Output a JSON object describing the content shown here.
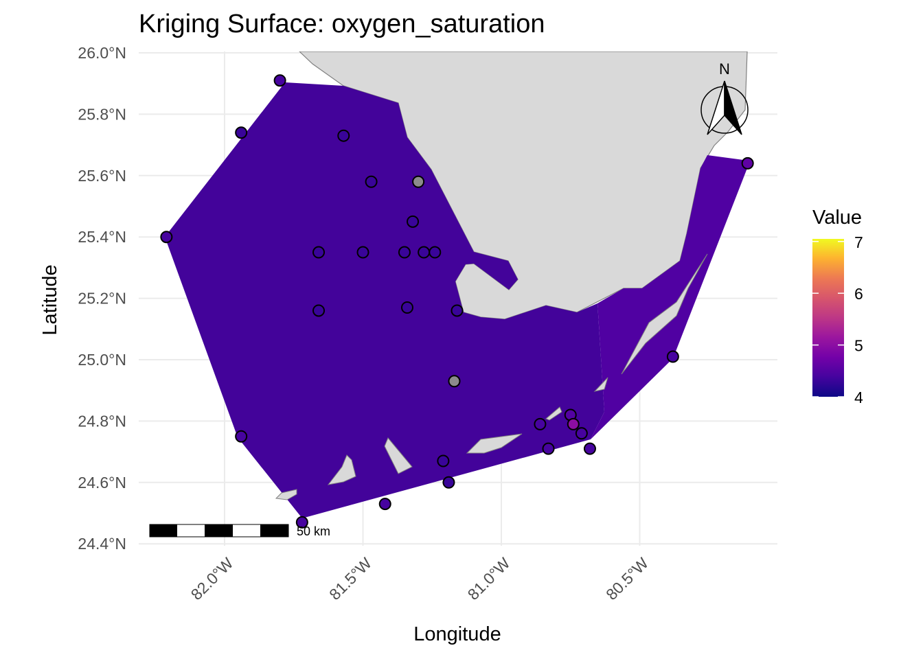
{
  "title": "Kriging Surface: oxygen_saturation",
  "chart_data": {
    "type": "map",
    "title": "Kriging Surface: oxygen_saturation",
    "xlabel": "Longitude",
    "ylabel": "Latitude",
    "x_ticks": [
      {
        "value": -82.0,
        "label": "82.0°W"
      },
      {
        "value": -81.5,
        "label": "81.5°W"
      },
      {
        "value": -81.0,
        "label": "81.0°W"
      },
      {
        "value": -80.5,
        "label": "80.5°W"
      }
    ],
    "y_ticks": [
      {
        "value": 26.0,
        "label": "26.0°N"
      },
      {
        "value": 25.8,
        "label": "25.8°N"
      },
      {
        "value": 25.6,
        "label": "25.6°N"
      },
      {
        "value": 25.4,
        "label": "25.4°N"
      },
      {
        "value": 25.2,
        "label": "25.2°N"
      },
      {
        "value": 25.0,
        "label": "25.0°N"
      },
      {
        "value": 24.8,
        "label": "24.8°N"
      },
      {
        "value": 24.6,
        "label": "24.6°N"
      },
      {
        "value": 24.4,
        "label": "24.4°N"
      }
    ],
    "xlim": [
      -82.3,
      -80.0
    ],
    "ylim": [
      24.4,
      26.0
    ],
    "grid": true,
    "colors": {
      "land": "#d9d9d9",
      "land_stroke": "#808080",
      "surface_main": "#430495",
      "surface_east": "#5301a3",
      "grid": "#ebebeb",
      "na_point": "#8c8c8c"
    },
    "surface_hull": [
      [
        -82.21,
        25.4
      ],
      [
        -81.8,
        25.9
      ],
      [
        -80.11,
        25.64
      ],
      [
        -80.38,
        25.01
      ],
      [
        -80.68,
        24.71
      ],
      [
        -81.69,
        24.48
      ]
    ],
    "samples": [
      {
        "lon": -81.8,
        "lat": 25.91,
        "value": 4.4
      },
      {
        "lon": -81.94,
        "lat": 25.74,
        "value": 4.3
      },
      {
        "lon": -81.57,
        "lat": 25.73,
        "value": 4.3
      },
      {
        "lon": -81.47,
        "lat": 25.58,
        "value": 4.3
      },
      {
        "lon": -81.3,
        "lat": 25.58,
        "value": null
      },
      {
        "lon": -81.32,
        "lat": 25.45,
        "value": 4.3
      },
      {
        "lon": -82.21,
        "lat": 25.4,
        "value": 4.4
      },
      {
        "lon": -81.66,
        "lat": 25.35,
        "value": 4.3
      },
      {
        "lon": -81.5,
        "lat": 25.35,
        "value": 4.3
      },
      {
        "lon": -81.35,
        "lat": 25.35,
        "value": 4.3
      },
      {
        "lon": -81.28,
        "lat": 25.35,
        "value": 4.3
      },
      {
        "lon": -81.24,
        "lat": 25.35,
        "value": 4.3
      },
      {
        "lon": -81.66,
        "lat": 25.16,
        "value": 4.3
      },
      {
        "lon": -81.34,
        "lat": 25.17,
        "value": 4.3
      },
      {
        "lon": -81.16,
        "lat": 25.16,
        "value": 4.3
      },
      {
        "lon": -81.17,
        "lat": 24.93,
        "value": null
      },
      {
        "lon": -80.38,
        "lat": 25.01,
        "value": 4.4
      },
      {
        "lon": -80.11,
        "lat": 25.64,
        "value": 4.6
      },
      {
        "lon": -80.75,
        "lat": 24.82,
        "value": 4.5
      },
      {
        "lon": -80.74,
        "lat": 24.79,
        "value": 5.0
      },
      {
        "lon": -80.86,
        "lat": 24.79,
        "value": 4.4
      },
      {
        "lon": -80.71,
        "lat": 24.76,
        "value": 4.4
      },
      {
        "lon": -80.83,
        "lat": 24.71,
        "value": 4.4
      },
      {
        "lon": -80.68,
        "lat": 24.71,
        "value": 4.4
      },
      {
        "lon": -81.21,
        "lat": 24.67,
        "value": 4.3
      },
      {
        "lon": -81.19,
        "lat": 24.6,
        "value": 4.3
      },
      {
        "lon": -81.42,
        "lat": 24.53,
        "value": 4.4
      },
      {
        "lon": -81.94,
        "lat": 24.75,
        "value": 4.4
      },
      {
        "lon": -81.72,
        "lat": 24.47,
        "value": 4.4
      }
    ]
  },
  "legend": {
    "title": "Value",
    "labels": [
      "7",
      "6",
      "5",
      "4"
    ],
    "range": [
      4,
      7.05
    ]
  },
  "scale_bar": {
    "label": "50 km"
  },
  "north_arrow": {
    "label": "N"
  }
}
